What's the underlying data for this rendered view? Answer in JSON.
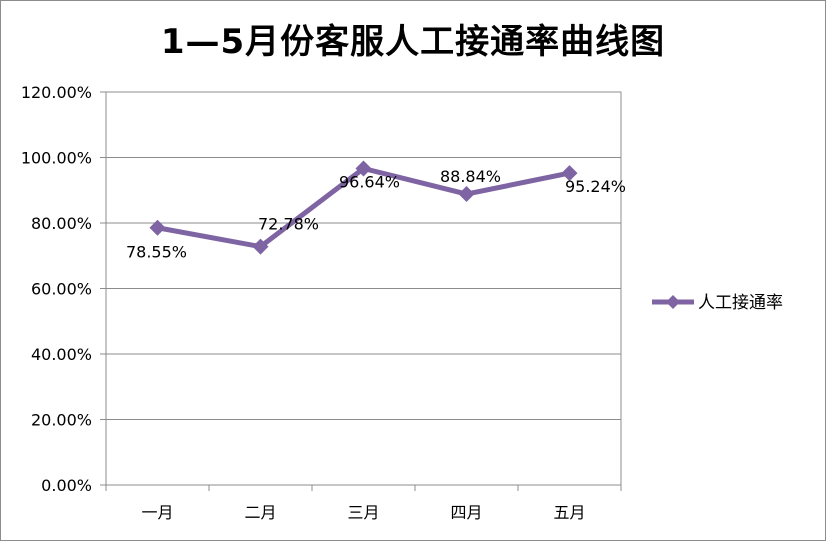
{
  "chart_data": {
    "type": "line",
    "title": "1—5月份客服人工接通率曲线图",
    "categories": [
      "一月",
      "二月",
      "三月",
      "四月",
      "五月"
    ],
    "series": [
      {
        "name": "人工接通率",
        "values": [
          78.55,
          72.78,
          96.64,
          88.84,
          95.24
        ],
        "labels": [
          "78.55%",
          "72.78%",
          "96.64%",
          "88.84%",
          "95.24%"
        ]
      }
    ],
    "y_ticks": [
      "0.00%",
      "20.00%",
      "40.00%",
      "60.00%",
      "80.00%",
      "100.00%",
      "120.00%"
    ],
    "ylim": [
      0,
      120
    ],
    "grid": true,
    "legend_position": "right",
    "colors": {
      "series": "#7e64a2",
      "grid": "#8c8c8c"
    }
  }
}
